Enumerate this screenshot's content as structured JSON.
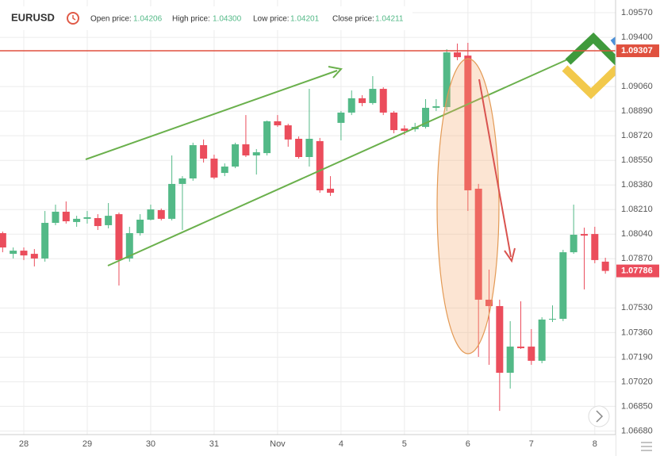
{
  "header": {
    "symbol": "EURUSD",
    "fields": [
      {
        "label": "Open price:",
        "value": "1.04206"
      },
      {
        "label": "High price:",
        "value": "1.04300"
      },
      {
        "label": "Low price:",
        "value": "1.04201"
      },
      {
        "label": "Close price:",
        "value": "1.04211"
      }
    ]
  },
  "chart_data": {
    "type": "candlestick",
    "categories": [
      null,
      null,
      "28",
      null,
      null,
      null,
      null,
      null,
      "29",
      null,
      null,
      null,
      null,
      null,
      "30",
      null,
      null,
      null,
      null,
      null,
      "31",
      null,
      null,
      null,
      null,
      null,
      "Nov",
      null,
      null,
      null,
      null,
      null,
      "4",
      null,
      null,
      null,
      null,
      null,
      "5",
      null,
      null,
      null,
      null,
      null,
      "6",
      null,
      null,
      null,
      null,
      null,
      "7",
      null,
      null,
      null,
      null,
      null,
      "8",
      null
    ],
    "open": [
      1.08047,
      1.07904,
      1.07926,
      1.07904,
      1.07872,
      1.08118,
      1.08195,
      1.08124,
      1.08146,
      1.08151,
      1.08102,
      1.08178,
      1.07872,
      1.08047,
      1.0814,
      1.08206,
      1.08146,
      1.08387,
      1.08425,
      1.08655,
      1.08562,
      1.08463,
      1.08507,
      1.08661,
      1.08584,
      1.086,
      1.0882,
      1.08792,
      1.08699,
      1.08573,
      1.08683,
      1.08354,
      1.08809,
      1.0888,
      1.08979,
      1.08946,
      1.09044,
      1.0888,
      1.0877,
      1.08765,
      1.08781,
      1.08913,
      1.08918,
      1.09296,
      1.09274,
      1.08354,
      1.07587,
      1.07543,
      1.07082,
      1.07263,
      1.07263,
      1.07165,
      1.0745,
      1.07455,
      1.07915,
      1.08041,
      1.08041,
      1.0785
    ],
    "high": [
      1.08058,
      1.07948,
      1.07948,
      1.07937,
      1.082,
      1.08244,
      1.08266,
      1.08167,
      1.082,
      1.08178,
      1.08255,
      1.08189,
      1.08091,
      1.08178,
      1.08244,
      1.08217,
      1.08584,
      1.08441,
      1.08672,
      1.08694,
      1.08589,
      1.08529,
      1.08672,
      1.08863,
      1.08628,
      1.08825,
      1.08863,
      1.08803,
      1.08715,
      1.09044,
      1.08705,
      1.08441,
      1.08891,
      1.09033,
      1.09,
      1.09132,
      1.09055,
      1.08891,
      1.08792,
      1.08809,
      1.08973,
      1.08973,
      1.09318,
      1.09357,
      1.09362,
      1.08387,
      1.07795,
      1.07587,
      1.07439,
      1.07576,
      1.07384,
      1.07466,
      1.07548,
      1.07932,
      1.08244,
      1.08085,
      1.08091,
      1.07877
    ],
    "low": [
      1.07915,
      1.07872,
      1.07861,
      1.07817,
      1.0785,
      1.08102,
      1.08113,
      1.08091,
      1.08113,
      1.08069,
      1.0808,
      1.07685,
      1.0785,
      1.0803,
      1.08135,
      1.08135,
      1.08135,
      1.08069,
      1.08409,
      1.08535,
      1.0842,
      1.08441,
      1.08496,
      1.08573,
      1.08452,
      1.08584,
      1.08781,
      1.08644,
      1.08562,
      1.08507,
      1.08326,
      1.08304,
      1.08688,
      1.08863,
      1.08924,
      1.08935,
      1.08863,
      1.08737,
      1.08726,
      1.08748,
      1.0877,
      1.08891,
      1.08891,
      1.09242,
      1.082,
      1.07192,
      1.07137,
      1.06819,
      1.06973,
      1.07247,
      1.07137,
      1.07148,
      1.07433,
      1.07439,
      1.07904,
      1.07658,
      1.07839,
      1.07767
    ],
    "close": [
      1.07948,
      1.07926,
      1.07893,
      1.07872,
      1.08118,
      1.08195,
      1.08129,
      1.08146,
      1.08157,
      1.08096,
      1.08167,
      1.07861,
      1.08047,
      1.0814,
      1.08211,
      1.08146,
      1.08387,
      1.08425,
      1.08655,
      1.08562,
      1.08431,
      1.08507,
      1.08661,
      1.08584,
      1.08606,
      1.0882,
      1.08792,
      1.08694,
      1.08573,
      1.08699,
      1.08343,
      1.08326,
      1.0888,
      1.08979,
      1.08946,
      1.09044,
      1.0888,
      1.08759,
      1.08754,
      1.08781,
      1.08913,
      1.08924,
      1.09296,
      1.09263,
      1.08343,
      1.07587,
      1.07543,
      1.07082,
      1.07263,
      1.07252,
      1.07165,
      1.0745,
      1.07455,
      1.07915,
      1.08036,
      1.0803,
      1.07861,
      1.07786
    ],
    "up_color": "#53b987",
    "down_color": "#eb4d5c",
    "resistance": 1.09307,
    "resistance_color": "#e0513f",
    "ylim": [
      1.06655,
      1.09658
    ],
    "yticks": [
      {
        "value": 1.0957,
        "label": "1.09570"
      },
      {
        "value": 1.094,
        "label": "1.09400"
      },
      {
        "value": 1.0906,
        "label": "1.09060"
      },
      {
        "value": 1.0889,
        "label": "1.08890"
      },
      {
        "value": 1.0872,
        "label": "1.08720"
      },
      {
        "value": 1.0855,
        "label": "1.08550"
      },
      {
        "value": 1.0838,
        "label": "1.08380"
      },
      {
        "value": 1.0821,
        "label": "1.08210"
      },
      {
        "value": 1.0804,
        "label": "1.08040"
      },
      {
        "value": 1.0787,
        "label": "1.07870"
      },
      {
        "value": 1.0753,
        "label": "1.07530"
      },
      {
        "value": 1.0736,
        "label": "1.07360"
      },
      {
        "value": 1.0719,
        "label": "1.07190"
      },
      {
        "value": 1.0702,
        "label": "1.07020"
      },
      {
        "value": 1.0685,
        "label": "1.06850"
      },
      {
        "value": 1.0668,
        "label": "1.06680"
      }
    ],
    "grid": true
  }
}
